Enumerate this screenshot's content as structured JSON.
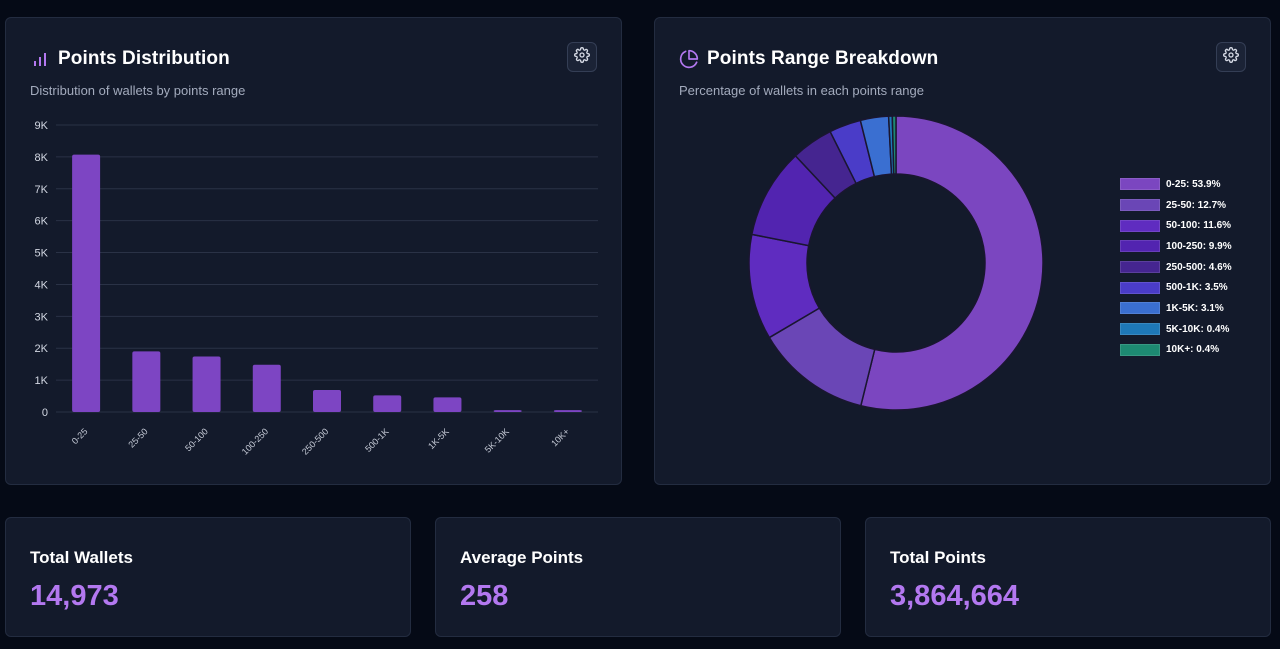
{
  "distribution": {
    "title": "Points Distribution",
    "subtitle": "Distribution of wallets by points range",
    "settings_icon": "gear-icon",
    "title_icon": "bar-chart-icon"
  },
  "breakdown": {
    "title": "Points Range Breakdown",
    "subtitle": "Percentage of wallets in each points range",
    "settings_icon": "gear-icon",
    "title_icon": "pie-chart-icon"
  },
  "stats": {
    "total_wallets": {
      "label": "Total Wallets",
      "value": "14,973"
    },
    "average_points": {
      "label": "Average Points",
      "value": "258"
    },
    "total_points": {
      "label": "Total Points",
      "value": "3,864,664"
    }
  },
  "colors": {
    "accent": "#b378f0",
    "bar": "#7d45c3"
  },
  "chart_data": [
    {
      "type": "bar",
      "categories": [
        "0-25",
        "25-50",
        "50-100",
        "100-250",
        "250-500",
        "500-1K",
        "1K-5K",
        "5K-10K",
        "10K+"
      ],
      "values": [
        8070,
        1900,
        1740,
        1480,
        690,
        520,
        460,
        60,
        60
      ],
      "yticks": [
        "0",
        "1K",
        "2K",
        "3K",
        "4K",
        "5K",
        "6K",
        "7K",
        "8K",
        "9K"
      ],
      "ylim": [
        0,
        9000
      ],
      "grid": true
    },
    {
      "type": "pie",
      "labels": [
        "0-25",
        "25-50",
        "50-100",
        "100-250",
        "250-500",
        "500-1K",
        "1K-5K",
        "5K-10K",
        "10K+"
      ],
      "values": [
        53.9,
        12.7,
        11.6,
        9.9,
        4.6,
        3.5,
        3.1,
        0.4,
        0.4
      ],
      "legend": [
        "0-25: 53.9%",
        "25-50: 12.7%",
        "50-100: 11.6%",
        "100-250: 9.9%",
        "250-500: 4.6%",
        "500-1K: 3.5%",
        "1K-5K: 3.1%",
        "5K-10K: 0.4%",
        "10K+: 0.4%"
      ],
      "colors": [
        "#7b46c0",
        "#6a46b6",
        "#5f2cc0",
        "#5224b0",
        "#452590",
        "#4a3cc8",
        "#3a6fd1",
        "#1e78b8",
        "#1d8a72"
      ],
      "legend_position": "right"
    }
  ]
}
